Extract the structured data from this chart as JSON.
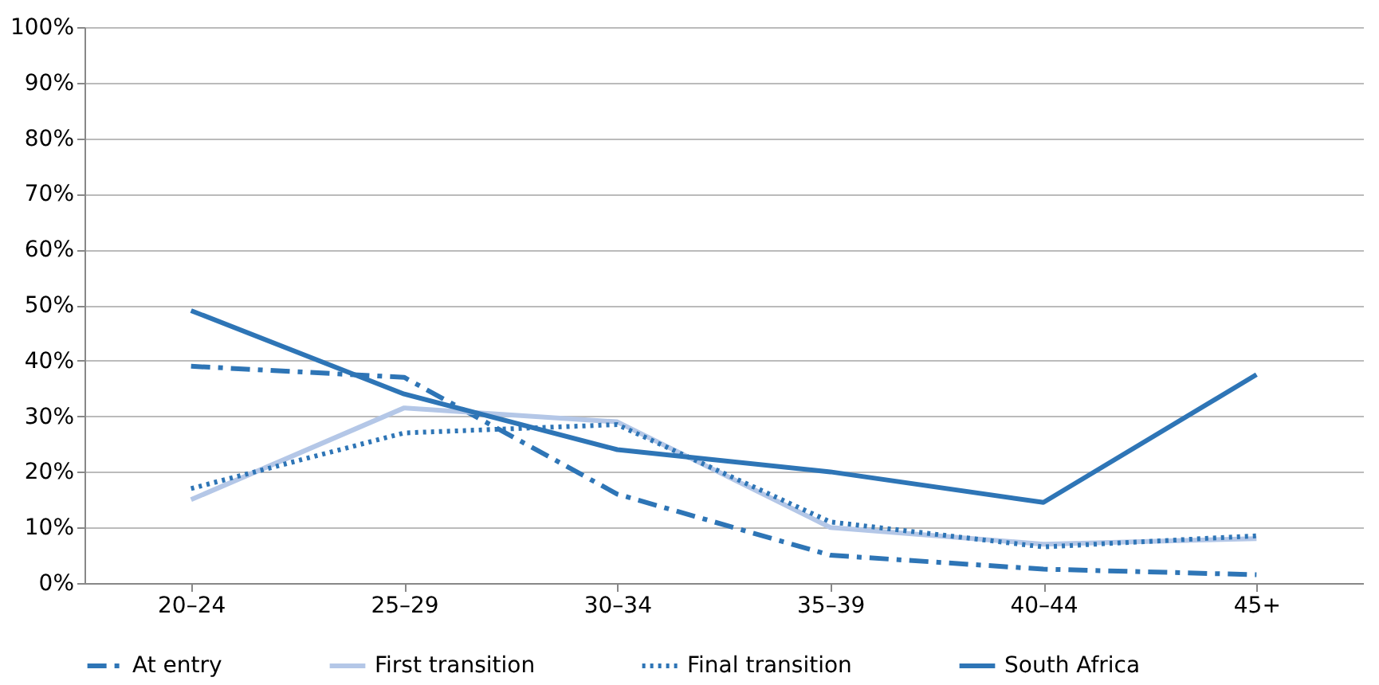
{
  "chart_data": {
    "type": "line",
    "categories": [
      "20–24",
      "25–29",
      "30–34",
      "35–39",
      "40–44",
      "45+"
    ],
    "series": [
      {
        "name": "At entry",
        "color": "#2e75b6",
        "line_style": "dashed",
        "values": [
          39,
          37,
          16,
          5,
          2.5,
          1.5
        ]
      },
      {
        "name": "First transition",
        "color": "#b4c7e7",
        "line_style": "solid",
        "values": [
          15,
          31.5,
          29,
          10,
          7,
          8
        ]
      },
      {
        "name": "Final transition",
        "color": "#2e75b6",
        "line_style": "dotted",
        "values": [
          17,
          27,
          28.5,
          11,
          6.5,
          8.5
        ]
      },
      {
        "name": "South Africa",
        "color": "#2e75b6",
        "line_style": "solid",
        "values": [
          49,
          34,
          24,
          20,
          14.5,
          37.5
        ]
      }
    ],
    "ylim": [
      0,
      100
    ],
    "yticks": [
      {
        "value": 0,
        "label": "0%"
      },
      {
        "value": 10,
        "label": "10%"
      },
      {
        "value": 20,
        "label": "20%"
      },
      {
        "value": 30,
        "label": "30%"
      },
      {
        "value": 40,
        "label": "40%"
      },
      {
        "value": 50,
        "label": "50%"
      },
      {
        "value": 60,
        "label": "60%"
      },
      {
        "value": 70,
        "label": "70%"
      },
      {
        "value": 80,
        "label": "80%"
      },
      {
        "value": 90,
        "label": "90%"
      },
      {
        "value": 100,
        "label": "100%"
      }
    ],
    "grid": "y",
    "legend": "bottom",
    "marker": "none"
  }
}
